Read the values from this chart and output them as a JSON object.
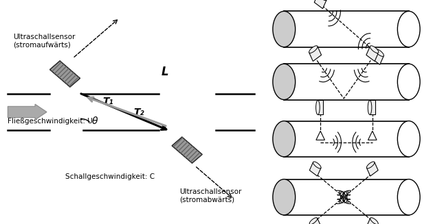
{
  "background_color": "#ffffff",
  "left": {
    "sensor_upstream_label": "Ultraschallsensor\n(stromaufwärts)",
    "sensor_downstream_label": "Ultraschallsensor\n(stromabwärts)",
    "flow_label": "Fließgeschwindigkeit: U",
    "sound_label": "Schallgeschwindigkeit: C",
    "T1_label": "T₁",
    "T2_label": "T₂",
    "L_label": "L",
    "theta_label": "θ"
  }
}
